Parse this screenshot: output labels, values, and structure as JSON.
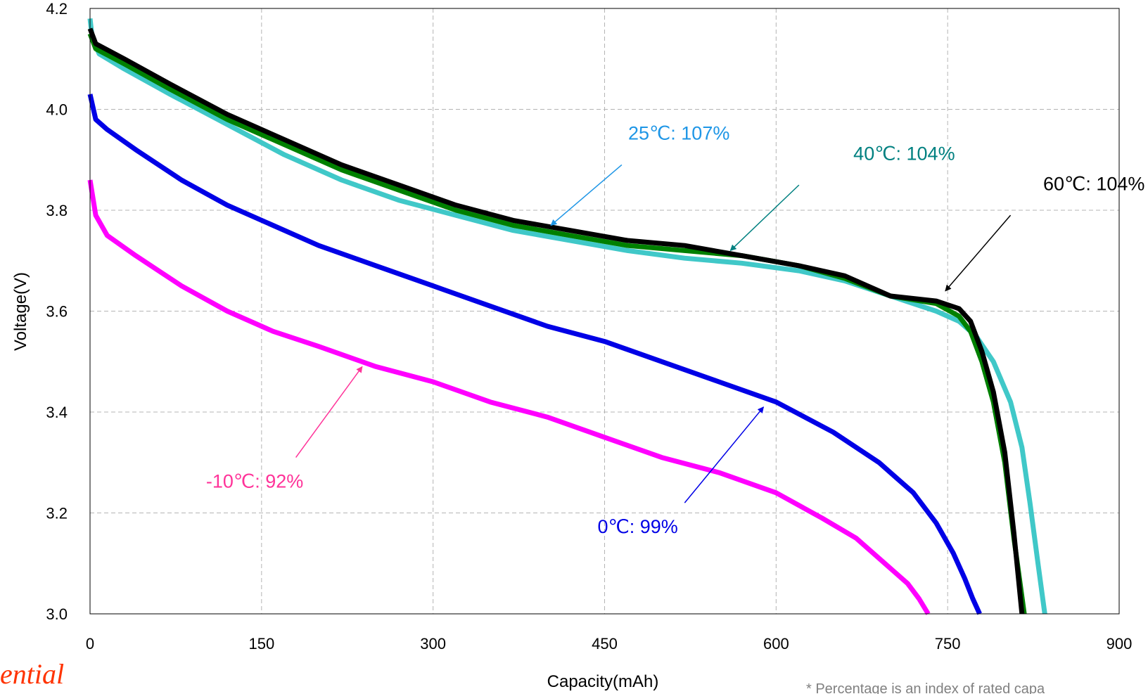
{
  "watermark": "ential",
  "footnote": "* Percentage is an index of rated capa",
  "chart_data": {
    "type": "line",
    "title": "",
    "xlabel": "Capacity(mAh)",
    "ylabel": "Voltage(V)",
    "xlim": [
      0,
      900
    ],
    "ylim": [
      3.0,
      4.2
    ],
    "xticks": [
      0,
      150,
      300,
      450,
      600,
      750,
      900
    ],
    "yticks": [
      3.0,
      3.2,
      3.4,
      3.6,
      3.8,
      4.0,
      4.2
    ],
    "xtick_labels": [
      "0",
      "150",
      "300",
      "450",
      "600",
      "750",
      "900"
    ],
    "ytick_labels": [
      "3.0",
      "3.2",
      "3.4",
      "3.6",
      "3.8",
      "4.0",
      "4.2"
    ],
    "grid": true,
    "series": [
      {
        "name": "60℃: 104%",
        "color": "#000000",
        "x": [
          0,
          5,
          30,
          70,
          120,
          170,
          220,
          270,
          320,
          370,
          420,
          470,
          520,
          570,
          620,
          660,
          700,
          740,
          760,
          770,
          780,
          790,
          800,
          808,
          815
        ],
        "y": [
          4.16,
          4.13,
          4.1,
          4.05,
          3.99,
          3.94,
          3.89,
          3.85,
          3.81,
          3.78,
          3.76,
          3.74,
          3.73,
          3.71,
          3.69,
          3.67,
          3.63,
          3.62,
          3.605,
          3.58,
          3.52,
          3.44,
          3.32,
          3.16,
          3.0
        ]
      },
      {
        "name": "40℃: 104%",
        "color": "#008000",
        "x": [
          0,
          5,
          30,
          70,
          120,
          170,
          220,
          270,
          320,
          370,
          420,
          470,
          520,
          570,
          620,
          660,
          700,
          740,
          760,
          770,
          780,
          790,
          800,
          808,
          817
        ],
        "y": [
          4.15,
          4.12,
          4.09,
          4.04,
          3.98,
          3.93,
          3.88,
          3.84,
          3.8,
          3.77,
          3.75,
          3.73,
          3.72,
          3.71,
          3.69,
          3.665,
          3.63,
          3.615,
          3.59,
          3.56,
          3.5,
          3.42,
          3.3,
          3.15,
          3.0
        ]
      },
      {
        "name": "25℃: 107%",
        "color": "#40c8c8",
        "x": [
          0,
          2,
          8,
          30,
          70,
          120,
          170,
          220,
          270,
          320,
          370,
          420,
          470,
          520,
          570,
          620,
          660,
          700,
          740,
          760,
          775,
          790,
          805,
          815,
          822,
          829,
          835
        ],
        "y": [
          4.18,
          4.14,
          4.11,
          4.08,
          4.03,
          3.97,
          3.91,
          3.86,
          3.82,
          3.79,
          3.76,
          3.74,
          3.72,
          3.705,
          3.695,
          3.68,
          3.66,
          3.63,
          3.6,
          3.58,
          3.55,
          3.5,
          3.42,
          3.33,
          3.22,
          3.1,
          3.0
        ]
      },
      {
        "name": "0℃: 99%",
        "color": "#0000e6",
        "x": [
          0,
          5,
          15,
          40,
          80,
          120,
          160,
          200,
          250,
          300,
          350,
          400,
          450,
          500,
          550,
          600,
          650,
          690,
          720,
          740,
          755,
          765,
          772,
          778
        ],
        "y": [
          4.03,
          3.98,
          3.96,
          3.92,
          3.86,
          3.81,
          3.77,
          3.73,
          3.69,
          3.65,
          3.61,
          3.57,
          3.54,
          3.5,
          3.46,
          3.42,
          3.36,
          3.3,
          3.24,
          3.18,
          3.12,
          3.07,
          3.03,
          3.0
        ]
      },
      {
        "name": "-10℃: 92%",
        "color": "#ff00ff",
        "x": [
          0,
          5,
          15,
          40,
          80,
          120,
          160,
          200,
          250,
          300,
          350,
          400,
          450,
          500,
          550,
          600,
          640,
          670,
          700,
          715,
          725,
          733
        ],
        "y": [
          3.86,
          3.79,
          3.75,
          3.71,
          3.65,
          3.6,
          3.56,
          3.53,
          3.49,
          3.46,
          3.42,
          3.39,
          3.35,
          3.31,
          3.28,
          3.24,
          3.19,
          3.15,
          3.09,
          3.06,
          3.03,
          3.0
        ]
      }
    ],
    "annotations": [
      {
        "text": "25℃: 107%",
        "color": "#1e96e6",
        "text_x": 515,
        "text_y": 3.94,
        "from": [
          465,
          3.89
        ],
        "to": [
          403,
          3.77
        ]
      },
      {
        "text": "40℃: 104%",
        "color": "#008080",
        "text_x": 712,
        "text_y": 3.9,
        "from": [
          620,
          3.85
        ],
        "to": [
          560,
          3.72
        ]
      },
      {
        "text": "60℃: 104%",
        "color": "#000000",
        "text_x": 878,
        "text_y": 3.84,
        "from": [
          805,
          3.79
        ],
        "to": [
          748,
          3.64
        ]
      },
      {
        "text": "0℃: 99%",
        "color": "#0000e6",
        "text_x": 479,
        "text_y": 3.16,
        "from": [
          520,
          3.22
        ],
        "to": [
          589,
          3.41
        ]
      },
      {
        "text": "-10℃: 92%",
        "color": "#ff3399",
        "text_x": 144,
        "text_y": 3.25,
        "from": [
          180,
          3.31
        ],
        "to": [
          238,
          3.49
        ]
      }
    ]
  }
}
